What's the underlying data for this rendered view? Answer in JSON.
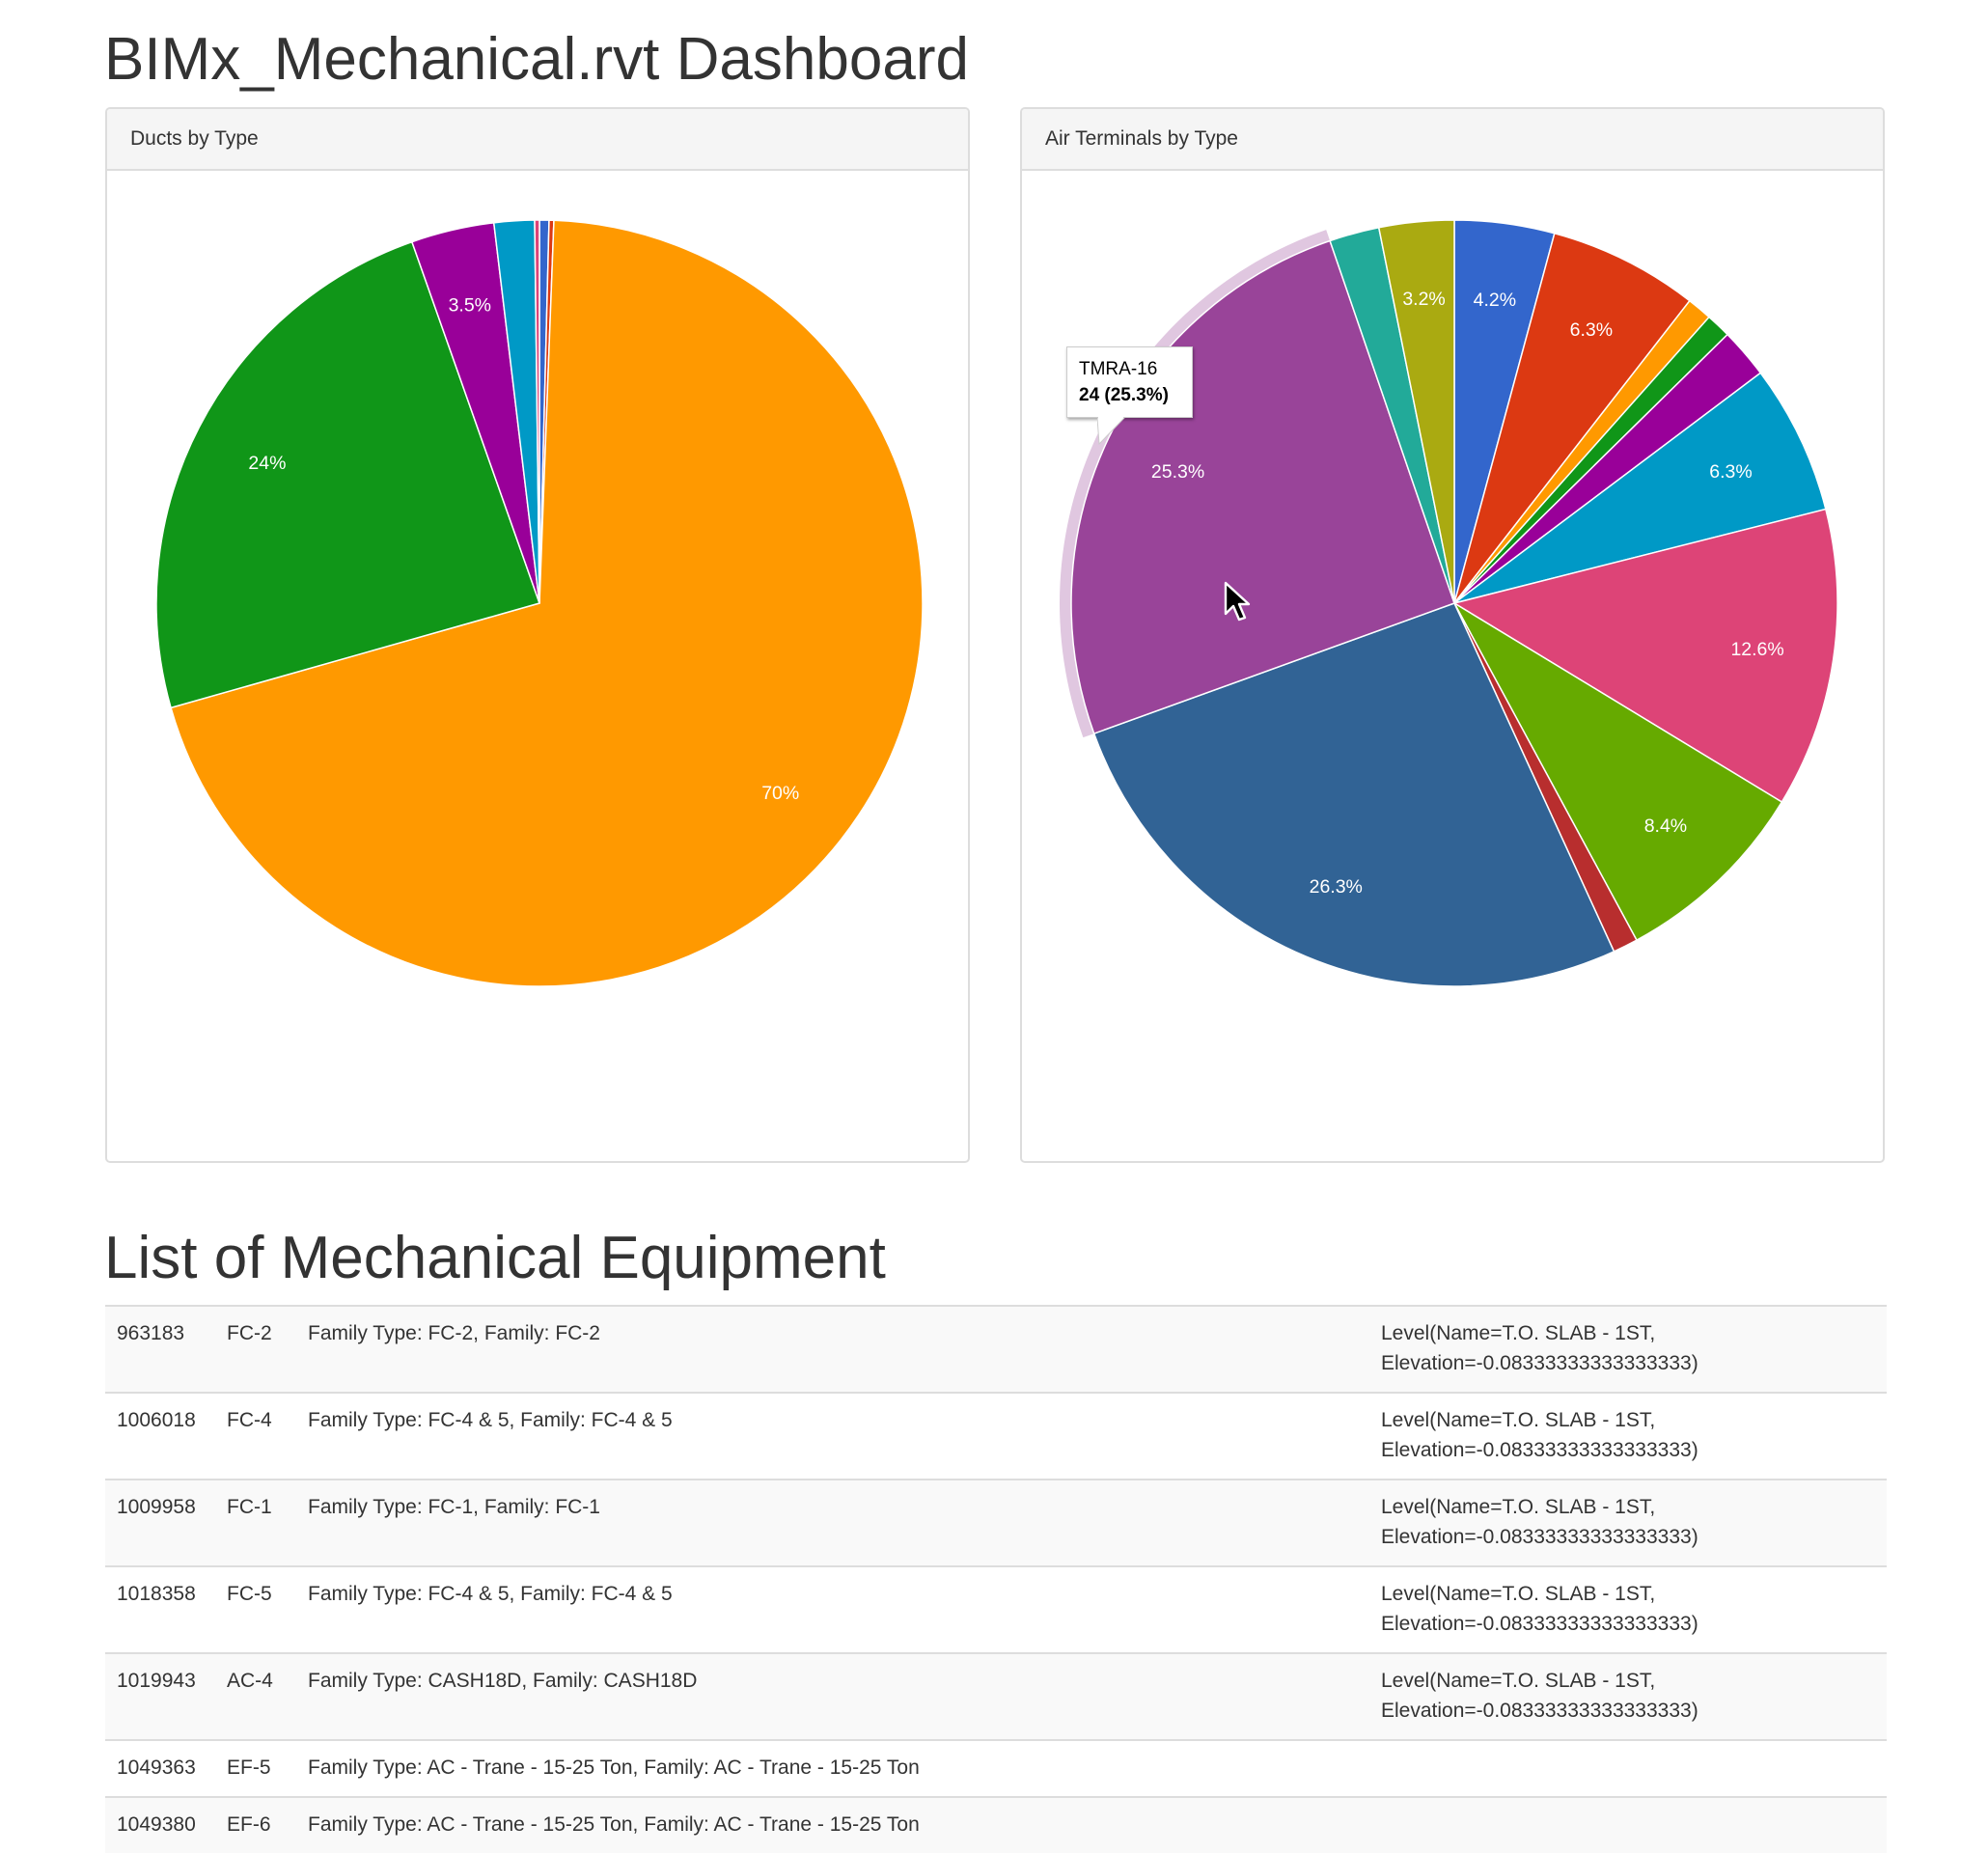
{
  "page": {
    "title": "BIMx_Mechanical.rvt Dashboard",
    "equipment_section_title": "List of Mechanical Equipment"
  },
  "panels": {
    "ducts": {
      "heading": "Ducts by Type"
    },
    "air_terminals": {
      "heading": "Air Terminals by Type"
    }
  },
  "tooltip": {
    "label": "TMRA-16",
    "value": "24 (25.3%)"
  },
  "chart_data": [
    {
      "type": "pie",
      "title": "Ducts by Type",
      "start": "12 o'clock, clockwise",
      "slices": [
        {
          "color": "#3366cc",
          "percent": 0.4,
          "label": ""
        },
        {
          "color": "#dc3912",
          "percent": 0.2,
          "label": ""
        },
        {
          "color": "#ff9900",
          "percent": 70.0,
          "label": "70%"
        },
        {
          "color": "#109618",
          "percent": 24.0,
          "label": "24%"
        },
        {
          "color": "#990099",
          "percent": 3.5,
          "label": "3.5%"
        },
        {
          "color": "#0099c6",
          "percent": 1.7,
          "label": ""
        },
        {
          "color": "#dd4477",
          "percent": 0.2,
          "label": ""
        }
      ]
    },
    {
      "type": "pie",
      "title": "Air Terminals by Type",
      "start": "12 o'clock, clockwise",
      "total": 95,
      "highlighted": "TMRA-16",
      "slices": [
        {
          "color": "#3366cc",
          "value": 4,
          "label": "4.2%"
        },
        {
          "color": "#dc3912",
          "value": 6,
          "label": "6.3%"
        },
        {
          "color": "#ff9900",
          "value": 1,
          "label": ""
        },
        {
          "color": "#109618",
          "value": 1,
          "label": ""
        },
        {
          "color": "#990099",
          "value": 2,
          "label": ""
        },
        {
          "color": "#0099c6",
          "value": 6,
          "label": "6.3%"
        },
        {
          "color": "#dd4477",
          "value": 12,
          "label": "12.6%"
        },
        {
          "color": "#66aa00",
          "value": 8,
          "label": "8.4%"
        },
        {
          "color": "#b82e2e",
          "value": 1,
          "label": ""
        },
        {
          "color": "#316395",
          "value": 25,
          "label": "26.3%"
        },
        {
          "color": "#994499",
          "value": 24,
          "label": "25.3%",
          "name": "TMRA-16"
        },
        {
          "color": "#22aa99",
          "value": 2,
          "label": ""
        },
        {
          "color": "#aaaa11",
          "value": 3,
          "label": "3.2%"
        }
      ]
    }
  ],
  "equipment": [
    {
      "id": "963183",
      "mark": "FC-2",
      "family": "Family Type: FC-2, Family: FC-2",
      "level": "Level(Name=T.O. SLAB - 1ST, Elevation=-0.08333333333333333)"
    },
    {
      "id": "1006018",
      "mark": "FC-4",
      "family": "Family Type: FC-4 & 5, Family: FC-4 & 5",
      "level": "Level(Name=T.O. SLAB - 1ST, Elevation=-0.08333333333333333)"
    },
    {
      "id": "1009958",
      "mark": "FC-1",
      "family": "Family Type: FC-1, Family: FC-1",
      "level": "Level(Name=T.O. SLAB - 1ST, Elevation=-0.08333333333333333)"
    },
    {
      "id": "1018358",
      "mark": "FC-5",
      "family": "Family Type: FC-4 & 5, Family: FC-4 & 5",
      "level": "Level(Name=T.O. SLAB - 1ST, Elevation=-0.08333333333333333)"
    },
    {
      "id": "1019943",
      "mark": "AC-4",
      "family": "Family Type: CASH18D, Family: CASH18D",
      "level": "Level(Name=T.O. SLAB - 1ST, Elevation=-0.08333333333333333)"
    },
    {
      "id": "1049363",
      "mark": "EF-5",
      "family": "Family Type: AC - Trane - 15-25 Ton, Family: AC - Trane - 15-25 Ton",
      "level": ""
    },
    {
      "id": "1049380",
      "mark": "EF-6",
      "family": "Family Type: AC - Trane - 15-25 Ton, Family: AC - Trane - 15-25 Ton",
      "level": ""
    }
  ]
}
